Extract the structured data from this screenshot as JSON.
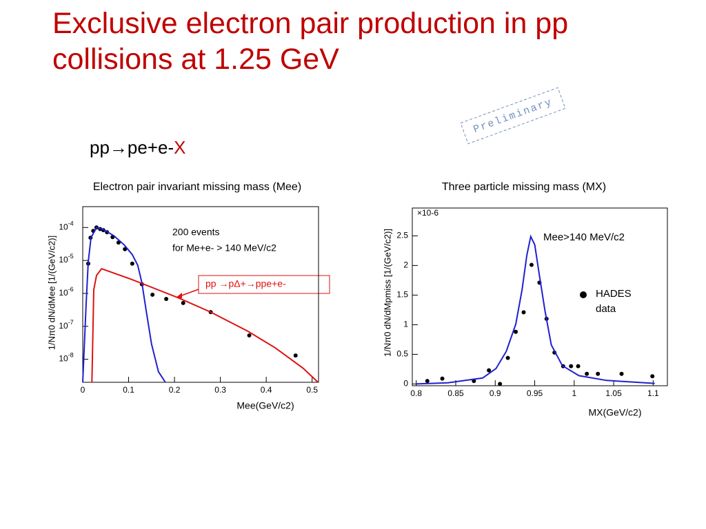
{
  "slide": {
    "title": "Exclusive electron pair production in pp collisions at 1.25 GeV",
    "reaction": "pp→pe+e-",
    "reaction_suffix": "X",
    "stamp": "Preliminary"
  },
  "chart_data": [
    {
      "type": "scatter",
      "title": "Electron pair invariant missing mass (Mee)",
      "x_label": "Mee(GeV/c2)",
      "y_label": "1/Nπ0 dN/dMee [1/(GeV/c2)]",
      "yscale": "log",
      "grid": false,
      "xlim": [
        0,
        0.514
      ],
      "ylim": [
        2e-09,
        0.00043
      ],
      "xticks": [
        0,
        0.1,
        0.2,
        0.3,
        0.4,
        0.5
      ],
      "yticks": [
        {
          "value": 1e-08,
          "label": "10",
          "exponent": "-8"
        },
        {
          "value": 1e-07,
          "label": "10",
          "exponent": "-7"
        },
        {
          "value": 1e-06,
          "label": "10",
          "exponent": "-6"
        },
        {
          "value": 1e-05,
          "label": "10",
          "exponent": "-5"
        },
        {
          "value": 0.0001,
          "label": "10",
          "exponent": "-4"
        }
      ],
      "annotations": [
        "200 events",
        "for Me+e- > 140 MeV/c2",
        "pp →pΔ+→ppe+e-"
      ],
      "series": [
        {
          "mode": "markers",
          "color": "#000000",
          "x": [
            0.012,
            0.017,
            0.023,
            0.03,
            0.038,
            0.045,
            0.053,
            0.065,
            0.078,
            0.092,
            0.108,
            0.129,
            0.152,
            0.182,
            0.219,
            0.279,
            0.363,
            0.464
          ],
          "values": [
            8e-06,
            4.9e-05,
            7.9e-05,
            0.0001,
            9e-05,
            8.3e-05,
            7.2e-05,
            5.1e-05,
            3.5e-05,
            2.2e-05,
            8e-06,
            1.9e-06,
            9.1e-07,
            6.8e-07,
            5.1e-07,
            2.7e-07,
            5.3e-08,
            1.3e-08
          ]
        },
        {
          "mode": "lines",
          "color": "#1f1fd0",
          "x": [
            0,
            0.0075,
            0.012,
            0.018,
            0.03,
            0.045,
            0.068,
            0.09,
            0.108,
            0.12,
            0.129,
            0.138,
            0.15,
            0.165,
            0.18
          ],
          "values": [
            2e-09,
            5.1e-07,
            9.1e-06,
            4.9e-05,
            0.0001,
            8.7e-05,
            5.6e-05,
            3e-05,
            1.5e-05,
            7.1e-06,
            2.1e-06,
            3.2e-07,
            2.9e-08,
            4.2e-09,
            2e-09
          ]
        },
        {
          "mode": "lines",
          "color": "#e01010",
          "x": [
            0.02,
            0.024,
            0.03,
            0.041,
            0.053,
            0.075,
            0.105,
            0.129,
            0.21,
            0.279,
            0.36,
            0.42,
            0.48,
            0.513
          ],
          "values": [
            2e-09,
            1.3e-06,
            3.5e-06,
            5.6e-06,
            4.9e-06,
            3.8e-06,
            2.7e-06,
            2e-06,
            7.2e-07,
            2.7e-07,
            7.1e-08,
            2.2e-08,
            5.4e-09,
            2e-09
          ]
        }
      ]
    },
    {
      "type": "scatter",
      "title": "Three particle missing mass (MX)",
      "x_label": "MX(GeV/c2)",
      "y_label": "1/Nπ0 dN/dMpmiss [1/(GeV/c2)]",
      "y_multiplier": "×10-6",
      "grid": false,
      "xlim": [
        0.795,
        1.118
      ],
      "ylim": [
        -0.03,
        2.97
      ],
      "xticks": [
        0.8,
        0.85,
        0.9,
        0.95,
        1,
        1.05,
        1.1
      ],
      "yticks": [
        0,
        0.5,
        1,
        1.5,
        2,
        2.5
      ],
      "annotations": [
        "Mee>140 MeV/c2"
      ],
      "series": [
        {
          "name": "HADES data",
          "mode": "markers",
          "color": "#000000",
          "x": [
            0.814,
            0.833,
            0.873,
            0.892,
            0.906,
            0.916,
            0.926,
            0.936,
            0.946,
            0.956,
            0.965,
            0.975,
            0.986,
            0.996,
            1.005,
            1.016,
            1.03,
            1.06,
            1.099
          ],
          "values": [
            0.05,
            0.09,
            0.05,
            0.23,
            0,
            0.44,
            0.88,
            1.21,
            2.01,
            1.71,
            1.1,
            0.53,
            0.3,
            0.3,
            0.3,
            0.17,
            0.17,
            0.17,
            0.13
          ]
        },
        {
          "mode": "lines",
          "color": "#1f1fd0",
          "x": [
            0.8,
            0.84,
            0.884,
            0.901,
            0.914,
            0.926,
            0.934,
            0.94,
            0.945,
            0.95,
            0.956,
            0.963,
            0.971,
            0.985,
            1.006,
            1.041,
            1.102
          ],
          "values": [
            0,
            0.02,
            0.1,
            0.26,
            0.55,
            1.01,
            1.59,
            2.17,
            2.49,
            2.35,
            1.83,
            1.24,
            0.66,
            0.31,
            0.14,
            0.06,
            0.01
          ]
        }
      ]
    }
  ]
}
